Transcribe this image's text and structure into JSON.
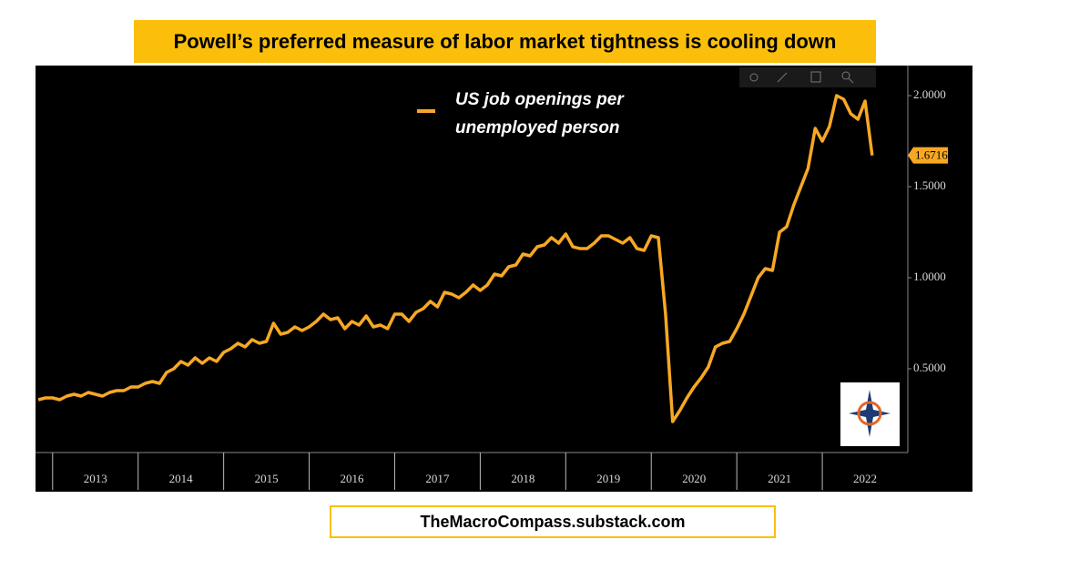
{
  "chart_data": {
    "type": "line",
    "title": "Powell’s preferred measure of labor market tightness is cooling down",
    "footer": "TheMacroCompass.substack.com",
    "x": [
      2012.833,
      2012.917,
      2013,
      2013.083,
      2013.167,
      2013.25,
      2013.333,
      2013.417,
      2013.5,
      2013.583,
      2013.667,
      2013.75,
      2013.833,
      2013.917,
      2014,
      2014.083,
      2014.167,
      2014.25,
      2014.333,
      2014.417,
      2014.5,
      2014.583,
      2014.667,
      2014.75,
      2014.833,
      2014.917,
      2015,
      2015.083,
      2015.167,
      2015.25,
      2015.333,
      2015.417,
      2015.5,
      2015.583,
      2015.667,
      2015.75,
      2015.833,
      2015.917,
      2016,
      2016.083,
      2016.167,
      2016.25,
      2016.333,
      2016.417,
      2016.5,
      2016.583,
      2016.667,
      2016.75,
      2016.833,
      2016.917,
      2017,
      2017.083,
      2017.167,
      2017.25,
      2017.333,
      2017.417,
      2017.5,
      2017.583,
      2017.667,
      2017.75,
      2017.833,
      2017.917,
      2018,
      2018.083,
      2018.167,
      2018.25,
      2018.333,
      2018.417,
      2018.5,
      2018.583,
      2018.667,
      2018.75,
      2018.833,
      2018.917,
      2019,
      2019.083,
      2019.167,
      2019.25,
      2019.333,
      2019.417,
      2019.5,
      2019.583,
      2019.667,
      2019.75,
      2019.833,
      2019.917,
      2020,
      2020.083,
      2020.167,
      2020.25,
      2020.333,
      2020.417,
      2020.5,
      2020.583,
      2020.667,
      2020.75,
      2020.833,
      2020.917,
      2021,
      2021.083,
      2021.167,
      2021.25,
      2021.333,
      2021.417,
      2021.5,
      2021.583,
      2021.667,
      2021.75,
      2021.833,
      2021.917,
      2022,
      2022.083,
      2022.167,
      2022.25,
      2022.333,
      2022.417,
      2022.5,
      2022.583
    ],
    "series": [
      {
        "name": "US job openings per unemployed person",
        "color": "#f7a823",
        "values": [
          0.33,
          0.34,
          0.34,
          0.33,
          0.35,
          0.36,
          0.35,
          0.37,
          0.36,
          0.35,
          0.37,
          0.38,
          0.38,
          0.4,
          0.4,
          0.42,
          0.43,
          0.42,
          0.48,
          0.5,
          0.54,
          0.52,
          0.56,
          0.53,
          0.56,
          0.54,
          0.59,
          0.61,
          0.64,
          0.62,
          0.66,
          0.64,
          0.65,
          0.75,
          0.69,
          0.7,
          0.73,
          0.71,
          0.73,
          0.76,
          0.8,
          0.77,
          0.78,
          0.72,
          0.76,
          0.74,
          0.79,
          0.73,
          0.74,
          0.72,
          0.8,
          0.8,
          0.76,
          0.81,
          0.83,
          0.87,
          0.84,
          0.92,
          0.91,
          0.89,
          0.92,
          0.96,
          0.93,
          0.96,
          1.02,
          1.01,
          1.06,
          1.07,
          1.13,
          1.12,
          1.17,
          1.18,
          1.22,
          1.19,
          1.24,
          1.17,
          1.16,
          1.16,
          1.19,
          1.23,
          1.23,
          1.21,
          1.19,
          1.22,
          1.16,
          1.15,
          1.23,
          1.22,
          0.8,
          0.21,
          0.27,
          0.34,
          0.4,
          0.45,
          0.51,
          0.62,
          0.64,
          0.65,
          0.72,
          0.8,
          0.9,
          1.0,
          1.05,
          1.04,
          1.25,
          1.28,
          1.4,
          1.5,
          1.6,
          1.82,
          1.75,
          1.83,
          2.0,
          1.98,
          1.9,
          1.87,
          1.97,
          1.6716
        ]
      }
    ],
    "xlim": [
      2012.8,
      2023.0
    ],
    "xticks": [
      2013,
      2014,
      2015,
      2016,
      2017,
      2018,
      2019,
      2020,
      2021,
      2022
    ],
    "ylim": [
      0.04,
      2.165
    ],
    "yticks": [
      {
        "value": 0.5,
        "label": "0.5000"
      },
      {
        "value": 1,
        "label": "1.0000"
      },
      {
        "value": 1.5,
        "label": "1.5000"
      },
      {
        "value": 2,
        "label": "2.0000"
      }
    ]
  }
}
